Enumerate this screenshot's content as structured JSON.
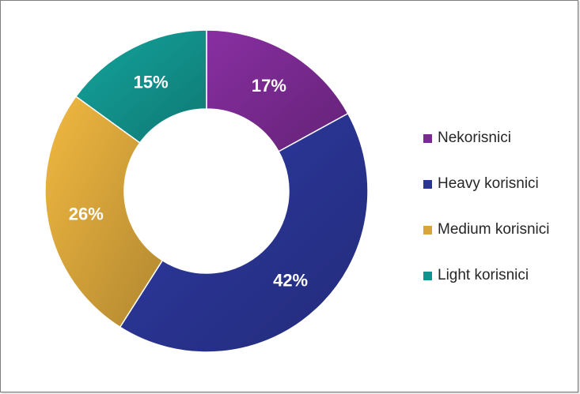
{
  "chart_data": {
    "type": "pie",
    "style": "donut",
    "categories": [
      "Nekorisnici",
      "Heavy korisnici",
      "Medium korisnici",
      "Light korisnici"
    ],
    "values": [
      17,
      42,
      26,
      15
    ],
    "labels": [
      "17%",
      "42%",
      "26%",
      "15%"
    ],
    "colors": [
      "#7a2a91",
      "#2a3593",
      "#d8a53a",
      "#12928c"
    ],
    "legend_position": "right"
  }
}
